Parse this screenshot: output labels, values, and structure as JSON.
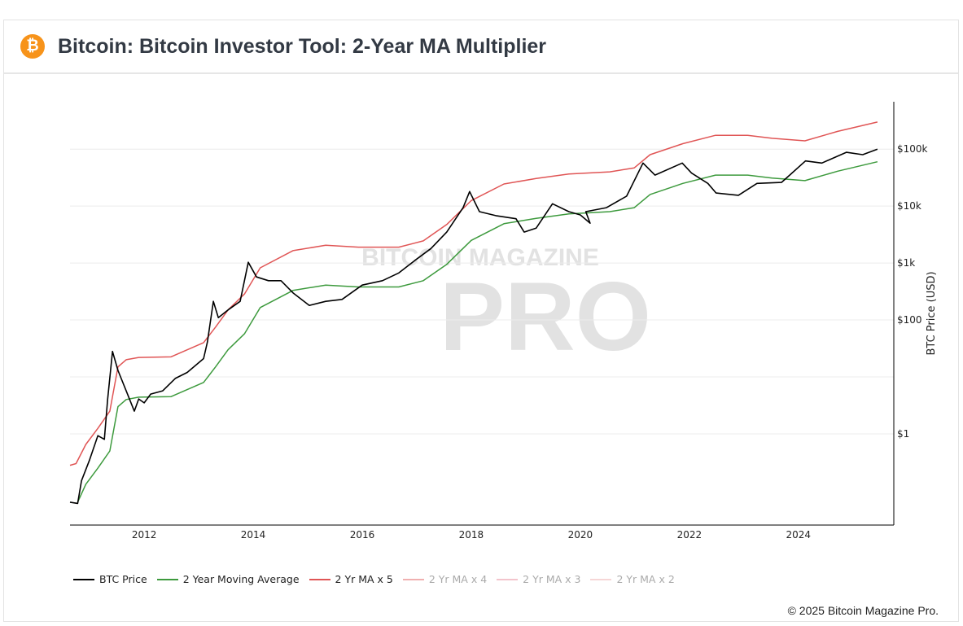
{
  "header": {
    "title": "Bitcoin: Bitcoin Investor Tool: 2-Year MA Multiplier",
    "logo_icon": "bitcoin-icon"
  },
  "watermark": {
    "line1": "BITCOIN MAGAZINE",
    "line2": "PRO"
  },
  "footer": {
    "copyright": "© 2025 Bitcoin Magazine Pro."
  },
  "chart_data": {
    "type": "line",
    "ylabel": "BTC Price (USD)",
    "yscale": "log",
    "ylim": [
      0.025,
      680000
    ],
    "xlim": [
      2010.64,
      2025.75
    ],
    "y_ticks": [
      {
        "value": 1,
        "label": "$1"
      },
      {
        "value": 100,
        "label": "$100"
      },
      {
        "value": 1000,
        "label": "$1k"
      },
      {
        "value": 10000,
        "label": "$10k"
      },
      {
        "value": 100000,
        "label": "$100k"
      }
    ],
    "x_ticks": [
      2012,
      2014,
      2016,
      2018,
      2020,
      2022,
      2024
    ],
    "grid": true,
    "legend_position": "bottom",
    "series": [
      {
        "name": "BTC Price",
        "color": "#000000",
        "points": [
          [
            2010.64,
            0.063
          ],
          [
            2010.78,
            0.06
          ],
          [
            2010.85,
            0.15
          ],
          [
            2011.0,
            0.35
          ],
          [
            2011.15,
            0.93
          ],
          [
            2011.27,
            0.8
          ],
          [
            2011.33,
            4
          ],
          [
            2011.42,
            28
          ],
          [
            2011.52,
            13
          ],
          [
            2011.67,
            5.7
          ],
          [
            2011.82,
            2.5
          ],
          [
            2011.9,
            4.1
          ],
          [
            2012.0,
            3.5
          ],
          [
            2012.12,
            5
          ],
          [
            2012.34,
            5.7
          ],
          [
            2012.57,
            9.4
          ],
          [
            2012.79,
            12
          ],
          [
            2013.09,
            21
          ],
          [
            2013.16,
            41
          ],
          [
            2013.27,
            212
          ],
          [
            2013.36,
            110
          ],
          [
            2013.54,
            150
          ],
          [
            2013.76,
            212
          ],
          [
            2013.91,
            1030
          ],
          [
            2014.06,
            570
          ],
          [
            2014.28,
            490
          ],
          [
            2014.51,
            490
          ],
          [
            2014.73,
            300
          ],
          [
            2015.03,
            180
          ],
          [
            2015.33,
            212
          ],
          [
            2015.63,
            230
          ],
          [
            2016.0,
            410
          ],
          [
            2016.37,
            490
          ],
          [
            2016.67,
            670
          ],
          [
            2016.96,
            1100
          ],
          [
            2017.26,
            1800
          ],
          [
            2017.55,
            3500
          ],
          [
            2017.85,
            9400
          ],
          [
            2017.97,
            18000
          ],
          [
            2018.15,
            8000
          ],
          [
            2018.45,
            6800
          ],
          [
            2018.82,
            6000
          ],
          [
            2018.97,
            3500
          ],
          [
            2019.19,
            4100
          ],
          [
            2019.49,
            11000
          ],
          [
            2019.79,
            8000
          ],
          [
            2020.0,
            7000
          ],
          [
            2020.18,
            5000
          ],
          [
            2020.1,
            8000
          ],
          [
            2020.48,
            9400
          ],
          [
            2020.85,
            15000
          ],
          [
            2021.15,
            57000
          ],
          [
            2021.37,
            35000
          ],
          [
            2021.87,
            57000
          ],
          [
            2022.04,
            38000
          ],
          [
            2022.34,
            25000
          ],
          [
            2022.49,
            17000
          ],
          [
            2022.9,
            15500
          ],
          [
            2023.24,
            25000
          ],
          [
            2023.69,
            26000
          ],
          [
            2023.84,
            35000
          ],
          [
            2024.13,
            62000
          ],
          [
            2024.43,
            57000
          ],
          [
            2024.88,
            88000
          ],
          [
            2025.18,
            80000
          ],
          [
            2025.45,
            100000
          ]
        ]
      },
      {
        "name": "2 Year Moving Average",
        "color": "#3d9a3d",
        "points": [
          [
            2010.78,
            0.063
          ],
          [
            2010.93,
            0.13
          ],
          [
            2011.15,
            0.25
          ],
          [
            2011.37,
            0.5
          ],
          [
            2011.52,
            3
          ],
          [
            2011.67,
            4
          ],
          [
            2011.9,
            4.4
          ],
          [
            2012.49,
            4.5
          ],
          [
            2013.09,
            8
          ],
          [
            2013.31,
            15
          ],
          [
            2013.54,
            30
          ],
          [
            2013.84,
            57
          ],
          [
            2014.13,
            165
          ],
          [
            2014.73,
            330
          ],
          [
            2015.33,
            410
          ],
          [
            2015.93,
            380
          ],
          [
            2016.67,
            380
          ],
          [
            2017.12,
            490
          ],
          [
            2017.55,
            950
          ],
          [
            2018.0,
            2500
          ],
          [
            2018.6,
            4900
          ],
          [
            2019.19,
            6100
          ],
          [
            2019.79,
            7300
          ],
          [
            2020.54,
            8000
          ],
          [
            2020.99,
            9400
          ],
          [
            2021.28,
            16000
          ],
          [
            2021.88,
            25000
          ],
          [
            2022.48,
            35000
          ],
          [
            2023.07,
            35000
          ],
          [
            2023.52,
            31000
          ],
          [
            2024.12,
            28000
          ],
          [
            2024.72,
            41000
          ],
          [
            2025.45,
            60000
          ]
        ]
      },
      {
        "name": "2 Yr MA x 5",
        "color": "#e05555",
        "multiplier": 5,
        "of": "2 Year Moving Average"
      },
      {
        "name": "2 Yr MA x 4",
        "color": "#f0b0b0",
        "hidden": true
      },
      {
        "name": "2 Yr MA x 3",
        "color": "#f3c4cc",
        "hidden": true
      },
      {
        "name": "2 Yr MA x 2",
        "color": "#f6d6d6",
        "hidden": true
      }
    ]
  }
}
